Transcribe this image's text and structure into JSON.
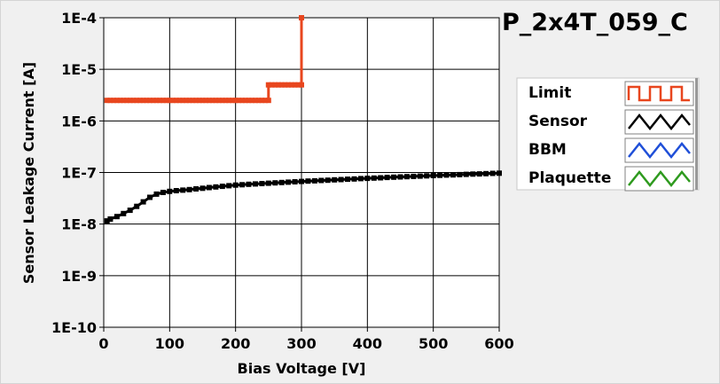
{
  "chart_data": {
    "type": "line",
    "title": "P_2x4T_059_C",
    "xlabel": "Bias Voltage [V]",
    "ylabel": "Sensor Leakage Current [A]",
    "xlim": [
      0,
      600
    ],
    "ylim": [
      1e-10,
      0.0001
    ],
    "yscale": "log",
    "grid": true,
    "legend_placement": "right",
    "x_ticks": [
      0,
      100,
      200,
      300,
      400,
      500,
      600
    ],
    "x_tick_labels": [
      "0",
      "100",
      "200",
      "300",
      "400",
      "500",
      "600"
    ],
    "y_ticks": [
      1e-10,
      1e-09,
      1e-08,
      1e-07,
      1e-06,
      1e-05,
      0.0001
    ],
    "y_tick_labels": [
      "1E-10",
      "1E-9",
      "1E-8",
      "1E-7",
      "1E-6",
      "1E-5",
      "1E-4"
    ],
    "series": [
      {
        "name": "Limit",
        "color": "#e8461e",
        "x": [
          5,
          10,
          15,
          20,
          25,
          30,
          35,
          40,
          45,
          50,
          55,
          60,
          65,
          70,
          75,
          80,
          85,
          90,
          95,
          100,
          105,
          110,
          115,
          120,
          125,
          130,
          135,
          140,
          145,
          150,
          155,
          160,
          165,
          170,
          175,
          180,
          185,
          190,
          195,
          200,
          205,
          210,
          215,
          220,
          225,
          230,
          235,
          240,
          245,
          250,
          250,
          255,
          260,
          265,
          270,
          275,
          280,
          285,
          290,
          295,
          300,
          300
        ],
        "y": [
          2.5e-06,
          2.5e-06,
          2.5e-06,
          2.5e-06,
          2.5e-06,
          2.5e-06,
          2.5e-06,
          2.5e-06,
          2.5e-06,
          2.5e-06,
          2.5e-06,
          2.5e-06,
          2.5e-06,
          2.5e-06,
          2.5e-06,
          2.5e-06,
          2.5e-06,
          2.5e-06,
          2.5e-06,
          2.5e-06,
          2.5e-06,
          2.5e-06,
          2.5e-06,
          2.5e-06,
          2.5e-06,
          2.5e-06,
          2.5e-06,
          2.5e-06,
          2.5e-06,
          2.5e-06,
          2.5e-06,
          2.5e-06,
          2.5e-06,
          2.5e-06,
          2.5e-06,
          2.5e-06,
          2.5e-06,
          2.5e-06,
          2.5e-06,
          2.5e-06,
          2.5e-06,
          2.5e-06,
          2.5e-06,
          2.5e-06,
          2.5e-06,
          2.5e-06,
          2.5e-06,
          2.5e-06,
          2.5e-06,
          2.5e-06,
          5e-06,
          5e-06,
          5e-06,
          5e-06,
          5e-06,
          5e-06,
          5e-06,
          5e-06,
          5e-06,
          5e-06,
          5e-06,
          0.0001
        ]
      },
      {
        "name": "Sensor",
        "color": "#000000",
        "x": [
          5,
          10,
          20,
          30,
          40,
          50,
          60,
          70,
          80,
          90,
          100,
          110,
          120,
          130,
          140,
          150,
          160,
          170,
          180,
          190,
          200,
          210,
          220,
          230,
          240,
          250,
          260,
          270,
          280,
          290,
          300,
          310,
          320,
          330,
          340,
          350,
          360,
          370,
          380,
          390,
          400,
          410,
          420,
          430,
          440,
          450,
          460,
          470,
          480,
          490,
          500,
          510,
          520,
          530,
          540,
          550,
          560,
          570,
          580,
          590,
          600
        ],
        "y": [
          1.15e-08,
          1.25e-08,
          1.4e-08,
          1.6e-08,
          1.85e-08,
          2.2e-08,
          2.7e-08,
          3.3e-08,
          3.8e-08,
          4.1e-08,
          4.3e-08,
          4.45e-08,
          4.55e-08,
          4.65e-08,
          4.8e-08,
          4.95e-08,
          5.1e-08,
          5.25e-08,
          5.4e-08,
          5.55e-08,
          5.7e-08,
          5.8e-08,
          5.9e-08,
          6e-08,
          6.1e-08,
          6.2e-08,
          6.3e-08,
          6.4e-08,
          6.5e-08,
          6.6e-08,
          6.7e-08,
          6.8e-08,
          6.9e-08,
          7e-08,
          7.1e-08,
          7.2e-08,
          7.3e-08,
          7.4e-08,
          7.5e-08,
          7.6e-08,
          7.7e-08,
          7.8e-08,
          7.9e-08,
          8e-08,
          8.1e-08,
          8.2e-08,
          8.3e-08,
          8.4e-08,
          8.5e-08,
          8.6e-08,
          8.7e-08,
          8.8e-08,
          8.9e-08,
          9e-08,
          9.1e-08,
          9.2e-08,
          9.3e-08,
          9.4e-08,
          9.5e-08,
          9.6e-08,
          9.7e-08
        ]
      }
    ],
    "legend": [
      {
        "name": "Limit",
        "color": "#e8461e",
        "pattern": "square"
      },
      {
        "name": "Sensor",
        "color": "#000000",
        "pattern": "triangle"
      },
      {
        "name": "BBM",
        "color": "#1f4fd8",
        "pattern": "triangle"
      },
      {
        "name": "Plaquette",
        "color": "#2e9a1e",
        "pattern": "triangle"
      }
    ]
  }
}
